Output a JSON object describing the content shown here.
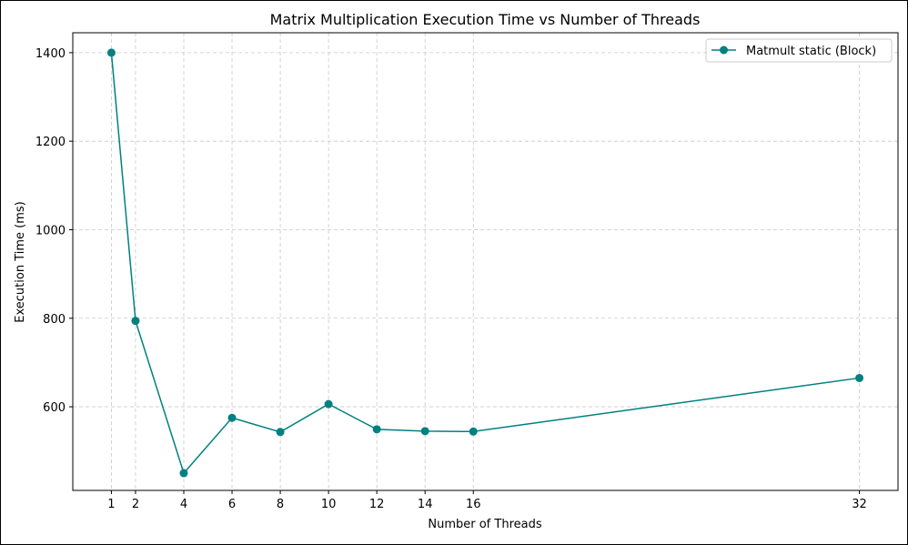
{
  "chart_data": {
    "type": "line",
    "title": "Matrix Multiplication Execution Time vs Number of Threads",
    "xlabel": "Number of Threads",
    "ylabel": "Execution Time (ms)",
    "x": [
      1,
      2,
      4,
      6,
      8,
      10,
      12,
      14,
      16,
      32
    ],
    "x_ticks": [
      1,
      2,
      4,
      6,
      8,
      10,
      12,
      14,
      16,
      32
    ],
    "y_ticks": [
      600,
      800,
      1000,
      1200,
      1400
    ],
    "xlim": [
      -0.6,
      33.6
    ],
    "ylim": [
      411,
      1445
    ],
    "grid": true,
    "legend_position": "top-right",
    "series": [
      {
        "name": "Matmult static (Block)",
        "color": "#008080",
        "marker": "circle",
        "values": [
          1400,
          794,
          450,
          575,
          543,
          606,
          549,
          545,
          544,
          665
        ]
      }
    ]
  }
}
